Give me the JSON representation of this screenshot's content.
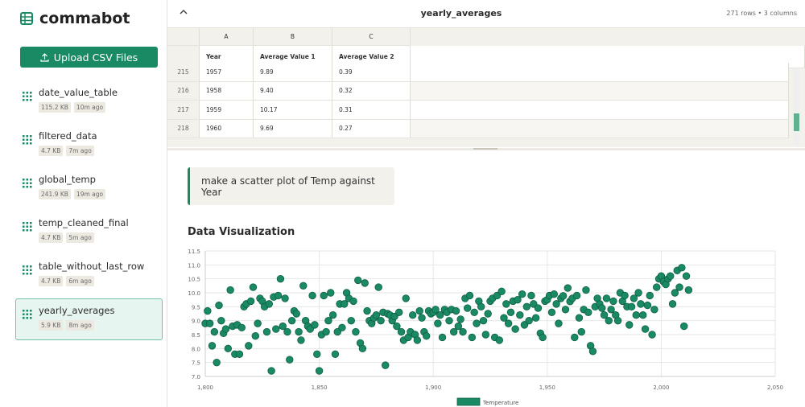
{
  "sidebar": {
    "logo": "commabot",
    "upload_button": "Upload CSV Files",
    "files": [
      {
        "name": "date_value_table",
        "size": "115.2 KB",
        "age": "10m ago"
      },
      {
        "name": "filtered_data",
        "size": "4.7 KB",
        "age": "7m ago"
      },
      {
        "name": "global_temp",
        "size": "241.9 KB",
        "age": "19m ago"
      },
      {
        "name": "temp_cleaned_final",
        "size": "4.7 KB",
        "age": "5m ago"
      },
      {
        "name": "table_without_last_row",
        "size": "4.7 KB",
        "age": "6m ago"
      },
      {
        "name": "yearly_averages",
        "size": "5.9 KB",
        "age": "8m ago"
      }
    ]
  },
  "table": {
    "title": "yearly_averages",
    "meta": "271 rows • 3 columns",
    "columns": [
      "A",
      "B",
      "C"
    ],
    "headers": [
      "Year",
      "Average Value 1",
      "Average Value 2"
    ],
    "rows": [
      {
        "index": "215",
        "cells": [
          "1957",
          "9.89",
          "0.39"
        ]
      },
      {
        "index": "216",
        "cells": [
          "1958",
          "9.40",
          "0.32"
        ]
      },
      {
        "index": "217",
        "cells": [
          "1959",
          "10.17",
          "0.31"
        ]
      },
      {
        "index": "218",
        "cells": [
          "1960",
          "9.69",
          "0.27"
        ]
      }
    ]
  },
  "chat": {
    "message": "make a scatter plot of Temp against Year"
  },
  "chart_data": {
    "type": "scatter",
    "title": "Data Visualization",
    "series": [
      {
        "name": "Temperature",
        "color": "#1a8a64",
        "x": [
          1800,
          1801,
          1802,
          1803,
          1804,
          1805,
          1806,
          1807,
          1808,
          1809,
          1810,
          1811,
          1812,
          1813,
          1814,
          1815,
          1816,
          1817,
          1818,
          1819,
          1820,
          1821,
          1822,
          1823,
          1824,
          1825,
          1826,
          1827,
          1828,
          1829,
          1830,
          1831,
          1832,
          1833,
          1834,
          1835,
          1836,
          1837,
          1838,
          1839,
          1840,
          1841,
          1842,
          1843,
          1844,
          1845,
          1846,
          1847,
          1848,
          1849,
          1850,
          1851,
          1852,
          1853,
          1854,
          1855,
          1856,
          1857,
          1858,
          1859,
          1860,
          1861,
          1862,
          1863,
          1864,
          1865,
          1866,
          1867,
          1868,
          1869,
          1870,
          1871,
          1872,
          1873,
          1874,
          1875,
          1876,
          1877,
          1878,
          1879,
          1880,
          1881,
          1882,
          1883,
          1884,
          1885,
          1886,
          1887,
          1888,
          1889,
          1890,
          1891,
          1892,
          1893,
          1894,
          1895,
          1896,
          1897,
          1898,
          1899,
          1900,
          1901,
          1902,
          1903,
          1904,
          1905,
          1906,
          1907,
          1908,
          1909,
          1910,
          1911,
          1912,
          1913,
          1914,
          1915,
          1916,
          1917,
          1918,
          1919,
          1920,
          1921,
          1922,
          1923,
          1924,
          1925,
          1926,
          1927,
          1928,
          1929,
          1930,
          1931,
          1932,
          1933,
          1934,
          1935,
          1936,
          1937,
          1938,
          1939,
          1940,
          1941,
          1942,
          1943,
          1944,
          1945,
          1946,
          1947,
          1948,
          1949,
          1950,
          1951,
          1952,
          1953,
          1954,
          1955,
          1956,
          1957,
          1958,
          1959,
          1960,
          1961,
          1962,
          1963,
          1964,
          1965,
          1966,
          1967,
          1968,
          1969,
          1970,
          1971,
          1972,
          1973,
          1974,
          1975,
          1976,
          1977,
          1978,
          1979,
          1980,
          1981,
          1982,
          1983,
          1984,
          1985,
          1986,
          1987,
          1988,
          1989,
          1990,
          1991,
          1992,
          1993,
          1994,
          1995,
          1996,
          1997,
          1998,
          1999,
          2000,
          2001,
          2002,
          2003,
          2004,
          2005,
          2006,
          2007,
          2008,
          2009,
          2010,
          2011,
          2012
        ],
        "values": [
          8.9,
          9.35,
          8.9,
          8.1,
          8.6,
          7.5,
          9.55,
          9.0,
          8.55,
          8.7,
          8.0,
          10.1,
          8.8,
          7.8,
          8.85,
          7.8,
          8.75,
          9.5,
          9.6,
          8.1,
          9.7,
          10.2,
          8.45,
          8.9,
          9.8,
          9.7,
          9.5,
          8.6,
          9.6,
          7.2,
          9.85,
          8.7,
          9.9,
          10.5,
          8.8,
          9.8,
          8.6,
          7.6,
          9.0,
          9.35,
          9.25,
          8.6,
          8.3,
          10.25,
          9.0,
          8.8,
          8.7,
          9.9,
          8.85,
          7.8,
          7.2,
          8.5,
          9.9,
          8.6,
          9.0,
          10.0,
          9.2,
          7.8,
          8.6,
          9.6,
          8.75,
          9.6,
          10.0,
          9.8,
          9.0,
          9.7,
          8.6,
          10.45,
          8.2,
          8.0,
          10.35,
          9.35,
          9.0,
          8.9,
          9.1,
          9.2,
          10.2,
          9.0,
          9.3,
          7.4,
          9.25,
          9.2,
          9.0,
          9.15,
          8.8,
          9.3,
          8.6,
          8.3,
          9.8,
          8.4,
          8.6,
          9.2,
          8.5,
          8.3,
          9.35,
          9.1,
          8.6,
          8.45,
          9.35,
          9.25,
          9.3,
          9.4,
          8.9,
          9.2,
          8.4,
          9.4,
          9.3,
          9.0,
          9.4,
          8.6,
          9.35,
          8.8,
          9.05,
          8.6,
          9.8,
          9.45,
          9.9,
          8.4,
          9.3,
          8.9,
          9.7,
          9.5,
          9.0,
          8.5,
          9.25,
          9.7,
          9.8,
          8.4,
          9.9,
          8.3,
          10.05,
          9.1,
          9.6,
          8.9,
          9.3,
          9.7,
          8.7,
          9.75,
          9.2,
          9.95,
          8.85,
          9.5,
          9.0,
          9.9,
          9.6,
          9.1,
          9.45,
          8.55,
          8.4,
          9.7,
          9.75,
          9.9,
          9.3,
          9.95,
          9.6,
          8.9,
          9.8,
          9.89,
          9.4,
          10.17,
          9.69,
          9.8,
          8.4,
          9.9,
          9.1,
          8.6,
          9.4,
          10.1,
          9.3,
          8.1,
          7.9,
          9.5,
          9.8,
          9.6,
          9.45,
          9.2,
          9.8,
          9.0,
          9.4,
          9.7,
          9.2,
          9.0,
          10.0,
          9.7,
          9.9,
          9.5,
          8.85,
          9.5,
          9.8,
          9.2,
          10.0,
          9.6,
          9.2,
          8.7,
          9.55,
          9.9,
          8.5,
          9.4,
          10.2,
          10.5,
          10.6,
          10.4,
          10.3,
          10.5,
          10.6,
          9.6,
          10.0,
          10.8,
          10.2,
          10.9,
          8.8,
          10.6,
          10.1
        ]
      }
    ],
    "xlim": [
      1800,
      2050
    ],
    "xticks": [
      {
        "value": 1800,
        "label": "1,800"
      },
      {
        "value": 1850,
        "label": "1,850"
      },
      {
        "value": 1900,
        "label": "1,900"
      },
      {
        "value": 1950,
        "label": "1,950"
      },
      {
        "value": 2000,
        "label": "2,000"
      },
      {
        "value": 2050,
        "label": "2,050"
      }
    ],
    "ylim": [
      7,
      11.5
    ],
    "yticks": [
      {
        "value": 7,
        "label": "7.0"
      },
      7.5,
      {
        "value": 8,
        "label": "8.0"
      },
      8.5,
      {
        "value": 9,
        "label": "9.0"
      },
      9.5,
      {
        "value": 10,
        "label": "10.0"
      },
      10.5,
      {
        "value": 11,
        "label": "11.0"
      },
      11.5
    ],
    "grid": true
  }
}
